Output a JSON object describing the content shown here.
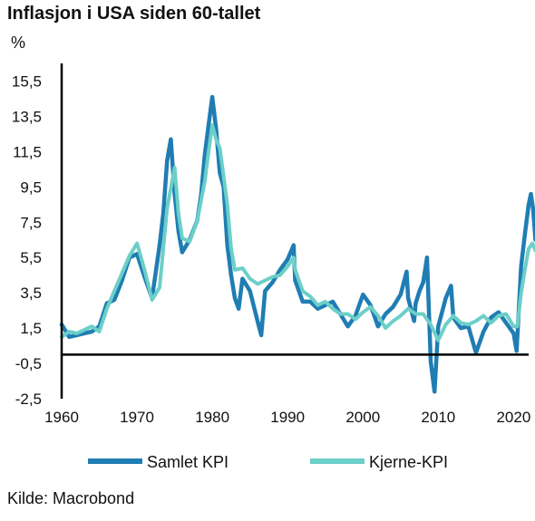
{
  "header": {
    "title": "Inflasjon i USA siden 60-tallet",
    "unit": "%"
  },
  "source": "Kilde: Macrobond",
  "colors": {
    "samlet": "#1f7db3",
    "kjerne": "#6ccfc8",
    "axis": "#000000"
  },
  "chart_data": {
    "type": "line",
    "title": "Inflasjon i USA siden 60-tallet",
    "ylabel": "%",
    "xlabel": "",
    "xlim": [
      1960,
      2022
    ],
    "ylim": [
      -2.5,
      16.5
    ],
    "y_ticks": [
      -2.5,
      -0.5,
      1.5,
      3.5,
      5.5,
      7.5,
      9.5,
      11.5,
      13.5,
      15.5
    ],
    "y_tick_labels": [
      "-2,5",
      "-0,5",
      "1,5",
      "3,5",
      "5,5",
      "7,5",
      "9,5",
      "11,5",
      "13,5",
      "15,5"
    ],
    "x_ticks": [
      1960,
      1970,
      1980,
      1990,
      2000,
      2010,
      2020
    ],
    "x_tick_labels": [
      "1960",
      "1970",
      "1980",
      "1990",
      "2000",
      "2010",
      "2020"
    ],
    "zero_line": 0,
    "legend_position": "bottom",
    "series": [
      {
        "name": "Samlet KPI",
        "color": "#1f7db3",
        "points": [
          [
            1960,
            1.7
          ],
          [
            1961,
            1.0
          ],
          [
            1962,
            1.1
          ],
          [
            1963,
            1.2
          ],
          [
            1964,
            1.3
          ],
          [
            1965,
            1.6
          ],
          [
            1966,
            2.9
          ],
          [
            1967,
            3.1
          ],
          [
            1968,
            4.2
          ],
          [
            1969,
            5.5
          ],
          [
            1970,
            5.7
          ],
          [
            1971,
            4.4
          ],
          [
            1972,
            3.2
          ],
          [
            1973,
            6.2
          ],
          [
            1973.5,
            8.0
          ],
          [
            1974,
            11.0
          ],
          [
            1974.5,
            12.2
          ],
          [
            1975,
            9.1
          ],
          [
            1975.5,
            7.0
          ],
          [
            1976,
            5.8
          ],
          [
            1977,
            6.5
          ],
          [
            1978,
            7.6
          ],
          [
            1978.5,
            9.0
          ],
          [
            1979,
            11.3
          ],
          [
            1979.5,
            13.0
          ],
          [
            1980,
            14.6
          ],
          [
            1980.5,
            12.8
          ],
          [
            1981,
            10.3
          ],
          [
            1981.5,
            9.5
          ],
          [
            1982,
            6.2
          ],
          [
            1982.5,
            4.5
          ],
          [
            1983,
            3.2
          ],
          [
            1983.5,
            2.6
          ],
          [
            1984,
            4.3
          ],
          [
            1985,
            3.6
          ],
          [
            1986,
            1.9
          ],
          [
            1986.5,
            1.1
          ],
          [
            1987,
            3.6
          ],
          [
            1988,
            4.1
          ],
          [
            1989,
            4.8
          ],
          [
            1990,
            5.4
          ],
          [
            1990.8,
            6.2
          ],
          [
            1991,
            4.2
          ],
          [
            1992,
            3.0
          ],
          [
            1993,
            3.0
          ],
          [
            1994,
            2.6
          ],
          [
            1995,
            2.8
          ],
          [
            1996,
            3.0
          ],
          [
            1997,
            2.3
          ],
          [
            1998,
            1.6
          ],
          [
            1999,
            2.2
          ],
          [
            2000,
            3.4
          ],
          [
            2001,
            2.8
          ],
          [
            2002,
            1.6
          ],
          [
            2003,
            2.3
          ],
          [
            2004,
            2.7
          ],
          [
            2005,
            3.4
          ],
          [
            2005.8,
            4.7
          ],
          [
            2006,
            3.2
          ],
          [
            2006.8,
            1.9
          ],
          [
            2007,
            2.9
          ],
          [
            2007.5,
            3.6
          ],
          [
            2008,
            4.1
          ],
          [
            2008.5,
            5.5
          ],
          [
            2009,
            -0.4
          ],
          [
            2009.5,
            -2.1
          ],
          [
            2010,
            1.6
          ],
          [
            2011,
            3.2
          ],
          [
            2011.7,
            3.9
          ],
          [
            2012,
            2.1
          ],
          [
            2013,
            1.5
          ],
          [
            2014,
            1.6
          ],
          [
            2015,
            0.1
          ],
          [
            2016,
            1.3
          ],
          [
            2017,
            2.1
          ],
          [
            2018,
            2.4
          ],
          [
            2019,
            1.8
          ],
          [
            2020,
            1.2
          ],
          [
            2020.4,
            0.2
          ],
          [
            2021,
            5.0
          ],
          [
            2021.5,
            6.8
          ],
          [
            2022,
            8.5
          ],
          [
            2022.3,
            9.1
          ],
          [
            2022.6,
            8.2
          ],
          [
            2022.9,
            6.5
          ]
        ]
      },
      {
        "name": "Kjerne-KPI",
        "color": "#6ccfc8",
        "points": [
          [
            1960,
            1.0
          ],
          [
            1961,
            1.3
          ],
          [
            1962,
            1.2
          ],
          [
            1963,
            1.4
          ],
          [
            1964,
            1.6
          ],
          [
            1965,
            1.3
          ],
          [
            1966,
            2.6
          ],
          [
            1967,
            3.6
          ],
          [
            1968,
            4.6
          ],
          [
            1969,
            5.6
          ],
          [
            1970,
            6.3
          ],
          [
            1971,
            4.8
          ],
          [
            1972,
            3.1
          ],
          [
            1973,
            3.8
          ],
          [
            1974,
            8.3
          ],
          [
            1975,
            10.6
          ],
          [
            1975.5,
            8.0
          ],
          [
            1976,
            6.6
          ],
          [
            1977,
            6.4
          ],
          [
            1978,
            7.6
          ],
          [
            1979,
            9.8
          ],
          [
            1979.5,
            11.5
          ],
          [
            1980,
            13.0
          ],
          [
            1980.5,
            12.2
          ],
          [
            1981,
            11.7
          ],
          [
            1981.5,
            10.1
          ],
          [
            1982,
            8.5
          ],
          [
            1982.5,
            6.0
          ],
          [
            1983,
            4.8
          ],
          [
            1984,
            4.9
          ],
          [
            1985,
            4.3
          ],
          [
            1986,
            4.0
          ],
          [
            1987,
            4.2
          ],
          [
            1988,
            4.4
          ],
          [
            1989,
            4.5
          ],
          [
            1990,
            5.0
          ],
          [
            1990.8,
            5.5
          ],
          [
            1991,
            4.8
          ],
          [
            1992,
            3.6
          ],
          [
            1993,
            3.3
          ],
          [
            1994,
            2.8
          ],
          [
            1995,
            3.0
          ],
          [
            1996,
            2.6
          ],
          [
            1997,
            2.3
          ],
          [
            1998,
            2.3
          ],
          [
            1999,
            2.0
          ],
          [
            2000,
            2.4
          ],
          [
            2001,
            2.7
          ],
          [
            2002,
            2.2
          ],
          [
            2003,
            1.5
          ],
          [
            2004,
            1.9
          ],
          [
            2005,
            2.2
          ],
          [
            2006,
            2.6
          ],
          [
            2007,
            2.3
          ],
          [
            2008,
            2.3
          ],
          [
            2009,
            1.7
          ],
          [
            2010,
            0.8
          ],
          [
            2011,
            1.7
          ],
          [
            2012,
            2.2
          ],
          [
            2013,
            1.8
          ],
          [
            2014,
            1.7
          ],
          [
            2015,
            1.9
          ],
          [
            2016,
            2.2
          ],
          [
            2017,
            1.8
          ],
          [
            2018,
            2.2
          ],
          [
            2019,
            2.3
          ],
          [
            2020,
            1.6
          ],
          [
            2020.5,
            1.6
          ],
          [
            2021,
            3.5
          ],
          [
            2021.5,
            4.8
          ],
          [
            2022,
            6.0
          ],
          [
            2022.5,
            6.3
          ],
          [
            2022.9,
            5.9
          ]
        ]
      }
    ]
  }
}
